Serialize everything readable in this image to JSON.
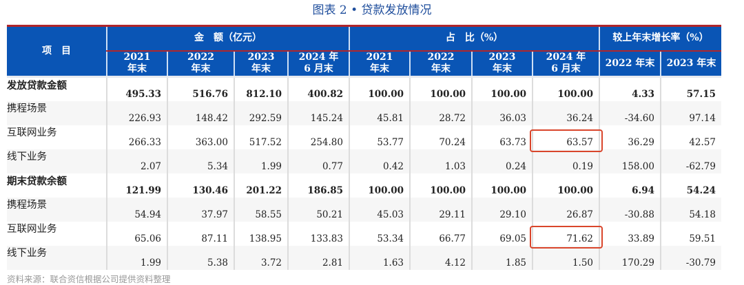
{
  "title": "图表 2 • 贷款发放情况",
  "header": {
    "item": "项　目",
    "groups": [
      "金　额（亿元）",
      "占　比（%）",
      "较上年末增长率（%）"
    ],
    "sub": [
      "2021\n年末",
      "2022\n年末",
      "2023\n年末",
      "2024 年\n6 月末",
      "2021\n年末",
      "2022\n年末",
      "2023\n年末",
      "2024 年\n6 月末",
      "2022 年末",
      "2023 年末"
    ]
  },
  "rows": [
    {
      "label": "发放贷款金额",
      "bold": true,
      "values": [
        "495.33",
        "516.76",
        "812.10",
        "400.82",
        "100.00",
        "100.00",
        "100.00",
        "100.00",
        "4.33",
        "57.15"
      ]
    },
    {
      "label": "携程场景",
      "values": [
        "226.93",
        "148.42",
        "292.59",
        "145.24",
        "45.81",
        "28.72",
        "36.03",
        "36.24",
        "-34.60",
        "97.14"
      ]
    },
    {
      "label": "互联网业务",
      "values": [
        "266.33",
        "363.00",
        "517.52",
        "254.80",
        "53.77",
        "70.24",
        "63.73",
        "63.57",
        "36.29",
        "42.57"
      ]
    },
    {
      "label": "线下业务",
      "values": [
        "2.07",
        "5.34",
        "1.99",
        "0.77",
        "0.42",
        "1.03",
        "0.24",
        "0.19",
        "158.00",
        "-62.79"
      ]
    },
    {
      "label": "期末贷款余额",
      "bold": true,
      "values": [
        "121.99",
        "130.46",
        "201.22",
        "186.85",
        "100.00",
        "100.00",
        "100.00",
        "100.00",
        "6.94",
        "54.24"
      ]
    },
    {
      "label": "携程场景",
      "values": [
        "54.94",
        "37.97",
        "58.55",
        "50.21",
        "45.03",
        "29.11",
        "29.10",
        "26.87",
        "-30.88",
        "54.18"
      ]
    },
    {
      "label": "互联网业务",
      "values": [
        "65.06",
        "87.11",
        "138.95",
        "133.83",
        "53.34",
        "66.77",
        "69.05",
        "71.62",
        "33.89",
        "59.51"
      ]
    },
    {
      "label": "线下业务",
      "values": [
        "1.99",
        "5.38",
        "3.72",
        "2.81",
        "1.63",
        "4.12",
        "1.85",
        "1.50",
        "170.29",
        "-30.79"
      ]
    }
  ],
  "highlight_color": "#d9452b",
  "header_color": "#0a55b5",
  "note": "资料来源：联合资信根据公司提供资料整理"
}
